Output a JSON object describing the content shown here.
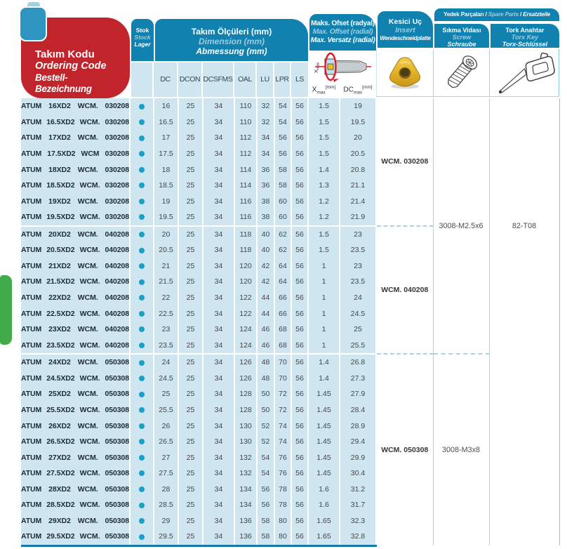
{
  "header": {
    "ordering_code": {
      "tr": "Takım Kodu",
      "en": "Ordering Code",
      "de": "Bestell-Bezeichnung"
    },
    "stock": {
      "tr": "Stok",
      "en": "Stock",
      "de": "Lager"
    },
    "dimensions": {
      "tr": "Takım Ölçüleri (mm)",
      "en": "Dimension (mm)",
      "de": "Abmessung (mm)"
    },
    "offset": {
      "tr": "Maks. Ofset (radyal)",
      "en": "Max. Offset (radial)",
      "de": "Max. Versatz (radial)"
    },
    "insert": {
      "tr": "Kesici Uç",
      "en": "Insert",
      "de": "Wendeschneidplatte"
    },
    "spare_parts": {
      "tr": "Yedek Parçaları",
      "en": "Spare Parts",
      "de": "Ersatzteile",
      "sep": " / "
    },
    "screw": {
      "tr": "Sıkma Vidası",
      "en": "Screw",
      "de": "Schraube"
    },
    "torx": {
      "tr": "Tork Anahtar",
      "en": "Torx Key",
      "de": "Torx-Schlüssel"
    },
    "dim_columns": [
      "DC",
      "DCON",
      "DCSFMS",
      "OAL",
      "LU",
      "LPR",
      "LS"
    ],
    "offset_x": {
      "base": "X",
      "sub": "max",
      "unit": "[mm]"
    },
    "offset_dc": {
      "base": "DC",
      "sub": "max",
      "unit": "[mm]"
    },
    "diagram_label": {
      "base": "X",
      "sub": "max"
    }
  },
  "rows": [
    {
      "code": "ATUM 16XD2 WCM. 030208",
      "stock_dot": true,
      "dc": "16",
      "dcon": "25",
      "dcsfms": "34",
      "oal": "110",
      "lu": "32",
      "lpr": "54",
      "ls": "56",
      "xmax": "1.5",
      "dcmax": "19"
    },
    {
      "code": "ATUM 16.5XD2 WCM. 030208",
      "stock_dot": true,
      "dc": "16.5",
      "dcon": "25",
      "dcsfms": "34",
      "oal": "110",
      "lu": "32",
      "lpr": "54",
      "ls": "56",
      "xmax": "1.5",
      "dcmax": "19.5"
    },
    {
      "code": "ATUM 17XD2 WCM. 030208",
      "stock_dot": true,
      "dc": "17",
      "dcon": "25",
      "dcsfms": "34",
      "oal": "112",
      "lu": "34",
      "lpr": "56",
      "ls": "56",
      "xmax": "1.5",
      "dcmax": "20"
    },
    {
      "code": "ATUM 17.5XD2 WCM 030208",
      "stock_dot": true,
      "dc": "17.5",
      "dcon": "25",
      "dcsfms": "34",
      "oal": "112",
      "lu": "34",
      "lpr": "56",
      "ls": "56",
      "xmax": "1.5",
      "dcmax": "20.5"
    },
    {
      "code": "ATUM 18XD2 WCM. 030208",
      "stock_dot": true,
      "dc": "18",
      "dcon": "25",
      "dcsfms": "34",
      "oal": "114",
      "lu": "36",
      "lpr": "58",
      "ls": "56",
      "xmax": "1.4",
      "dcmax": "20.8"
    },
    {
      "code": "ATUM 18.5XD2 WCM. 030208",
      "stock_dot": true,
      "dc": "18.5",
      "dcon": "25",
      "dcsfms": "34",
      "oal": "114",
      "lu": "36",
      "lpr": "58",
      "ls": "56",
      "xmax": "1.3",
      "dcmax": "21.1"
    },
    {
      "code": "ATUM 19XD2 WCM. 030208",
      "stock_dot": true,
      "dc": "19",
      "dcon": "25",
      "dcsfms": "34",
      "oal": "116",
      "lu": "38",
      "lpr": "60",
      "ls": "56",
      "xmax": "1.2",
      "dcmax": "21.4"
    },
    {
      "code": "ATUM 19.5XD2 WCM. 030208",
      "stock_dot": true,
      "dc": "19.5",
      "dcon": "25",
      "dcsfms": "34",
      "oal": "116",
      "lu": "38",
      "lpr": "60",
      "ls": "56",
      "xmax": "1.2",
      "dcmax": "21.9"
    },
    {
      "code": "ATUM 20XD2 WCM. 040208",
      "stock_dot": true,
      "dc": "20",
      "dcon": "25",
      "dcsfms": "34",
      "oal": "118",
      "lu": "40",
      "lpr": "62",
      "ls": "56",
      "xmax": "1.5",
      "dcmax": "23"
    },
    {
      "code": "ATUM 20.5XD2 WCM. 040208",
      "stock_dot": true,
      "dc": "20.5",
      "dcon": "25",
      "dcsfms": "34",
      "oal": "118",
      "lu": "40",
      "lpr": "62",
      "ls": "56",
      "xmax": "1.5",
      "dcmax": "23.5"
    },
    {
      "code": "ATUM 21XD2 WCM. 040208",
      "stock_dot": true,
      "dc": "21",
      "dcon": "25",
      "dcsfms": "34",
      "oal": "120",
      "lu": "42",
      "lpr": "64",
      "ls": "56",
      "xmax": "1",
      "dcmax": "23"
    },
    {
      "code": "ATUM 21.5XD2 WCM. 040208",
      "stock_dot": true,
      "dc": "21.5",
      "dcon": "25",
      "dcsfms": "34",
      "oal": "120",
      "lu": "42",
      "lpr": "64",
      "ls": "56",
      "xmax": "1",
      "dcmax": "23.5"
    },
    {
      "code": "ATUM 22XD2 WCM. 040208",
      "stock_dot": true,
      "dc": "22",
      "dcon": "25",
      "dcsfms": "34",
      "oal": "122",
      "lu": "44",
      "lpr": "66",
      "ls": "56",
      "xmax": "1",
      "dcmax": "24"
    },
    {
      "code": "ATUM 22.5XD2 WCM. 040208",
      "stock_dot": true,
      "dc": "22.5",
      "dcon": "25",
      "dcsfms": "34",
      "oal": "122",
      "lu": "44",
      "lpr": "66",
      "ls": "56",
      "xmax": "1",
      "dcmax": "24.5"
    },
    {
      "code": "ATUM 23XD2 WCM. 040208",
      "stock_dot": true,
      "dc": "23",
      "dcon": "25",
      "dcsfms": "34",
      "oal": "124",
      "lu": "46",
      "lpr": "68",
      "ls": "56",
      "xmax": "1",
      "dcmax": "25"
    },
    {
      "code": "ATUM 23.5XD2 WCM. 040208",
      "stock_dot": true,
      "dc": "23.5",
      "dcon": "25",
      "dcsfms": "34",
      "oal": "124",
      "lu": "46",
      "lpr": "68",
      "ls": "56",
      "xmax": "1",
      "dcmax": "25.5"
    },
    {
      "code": "ATUM 24XD2 WCM. 050308",
      "stock_dot": true,
      "dc": "24",
      "dcon": "25",
      "dcsfms": "34",
      "oal": "126",
      "lu": "48",
      "lpr": "70",
      "ls": "56",
      "xmax": "1.4",
      "dcmax": "26.8"
    },
    {
      "code": "ATUM 24.5XD2 WCM. 050308",
      "stock_dot": true,
      "dc": "24.5",
      "dcon": "25",
      "dcsfms": "34",
      "oal": "126",
      "lu": "48",
      "lpr": "70",
      "ls": "56",
      "xmax": "1.4",
      "dcmax": "27.3"
    },
    {
      "code": "ATUM 25XD2 WCM. 050308",
      "stock_dot": true,
      "dc": "25",
      "dcon": "25",
      "dcsfms": "34",
      "oal": "128",
      "lu": "50",
      "lpr": "72",
      "ls": "56",
      "xmax": "1.45",
      "dcmax": "27.9"
    },
    {
      "code": "ATUM 25.5XD2 WCM. 050308",
      "stock_dot": true,
      "dc": "25.5",
      "dcon": "25",
      "dcsfms": "34",
      "oal": "128",
      "lu": "50",
      "lpr": "72",
      "ls": "56",
      "xmax": "1.45",
      "dcmax": "28.4"
    },
    {
      "code": "ATUM 26XD2 WCM. 050308",
      "stock_dot": true,
      "dc": "26",
      "dcon": "25",
      "dcsfms": "34",
      "oal": "130",
      "lu": "52",
      "lpr": "74",
      "ls": "56",
      "xmax": "1.45",
      "dcmax": "28.9"
    },
    {
      "code": "ATUM 26.5XD2 WCM. 050308",
      "stock_dot": true,
      "dc": "26.5",
      "dcon": "25",
      "dcsfms": "34",
      "oal": "130",
      "lu": "52",
      "lpr": "74",
      "ls": "56",
      "xmax": "1.45",
      "dcmax": "29.4"
    },
    {
      "code": "ATUM 27XD2 WCM. 050308",
      "stock_dot": true,
      "dc": "27",
      "dcon": "25",
      "dcsfms": "34",
      "oal": "132",
      "lu": "54",
      "lpr": "76",
      "ls": "56",
      "xmax": "1.45",
      "dcmax": "29.9"
    },
    {
      "code": "ATUM 27.5XD2 WCM. 050308",
      "stock_dot": true,
      "dc": "27.5",
      "dcon": "25",
      "dcsfms": "34",
      "oal": "132",
      "lu": "54",
      "lpr": "76",
      "ls": "56",
      "xmax": "1.45",
      "dcmax": "30.4"
    },
    {
      "code": "ATUM 28XD2 WCM. 050308",
      "stock_dot": true,
      "dc": "28",
      "dcon": "25",
      "dcsfms": "34",
      "oal": "134",
      "lu": "56",
      "lpr": "78",
      "ls": "56",
      "xmax": "1.6",
      "dcmax": "31.2"
    },
    {
      "code": "ATUM 28.5XD2 WCM. 050308",
      "stock_dot": true,
      "dc": "28.5",
      "dcon": "25",
      "dcsfms": "34",
      "oal": "134",
      "lu": "56",
      "lpr": "78",
      "ls": "56",
      "xmax": "1.6",
      "dcmax": "31.7"
    },
    {
      "code": "ATUM 29XD2 WCM. 050308",
      "stock_dot": true,
      "dc": "29",
      "dcon": "25",
      "dcsfms": "34",
      "oal": "136",
      "lu": "58",
      "lpr": "80",
      "ls": "56",
      "xmax": "1.65",
      "dcmax": "32.3"
    },
    {
      "code": "ATUM 29.5XD2 WCM. 050308",
      "stock_dot": true,
      "dc": "29.5",
      "dcon": "25",
      "dcsfms": "34",
      "oal": "136",
      "lu": "58",
      "lpr": "80",
      "ls": "56",
      "xmax": "1.65",
      "dcmax": "32.8"
    }
  ],
  "merged_cells": {
    "insert": [
      {
        "label": "WCM. 030208",
        "start": 0,
        "span": 8
      },
      {
        "label": "WCM. 040208",
        "start": 8,
        "span": 8
      },
      {
        "label": "WCM. 050308",
        "start": 16,
        "span": 12
      }
    ],
    "screw": [
      {
        "label": "3008-M2.5x6",
        "start": 0,
        "span": 16
      },
      {
        "label": "3008-M3x8",
        "start": 16,
        "span": 12
      }
    ],
    "torx": [
      {
        "label": "82-T08",
        "start": 0,
        "span": 16
      },
      {
        "label": "",
        "start": 16,
        "span": 12,
        "no_divider": true
      }
    ]
  },
  "layout": {
    "group_breaks": [
      8,
      16
    ]
  },
  "colors": {
    "header_teal": "#1182b0",
    "header_subtext": "#9fcbdd",
    "code_red": "#c2242b",
    "body_blue": "#cfe5f0",
    "stock_dot": "#18a0c6",
    "green_tab": "#41ab4c",
    "table_bottom_border": "#1478a8",
    "grid_light_blue": "#a9d4e6",
    "insert_gold": "#e4b226",
    "diagram_red": "#e11926"
  }
}
